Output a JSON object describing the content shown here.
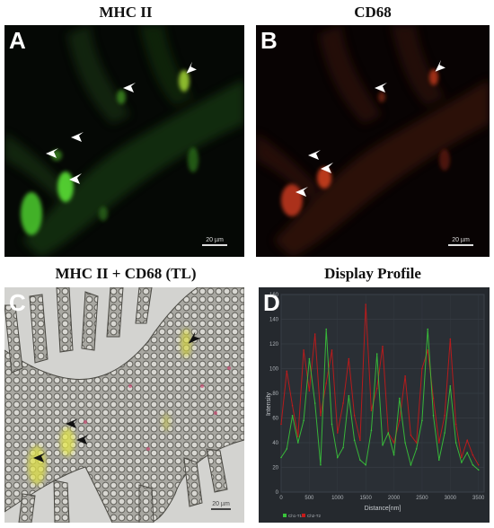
{
  "panels": {
    "a": {
      "title": "MHC II",
      "letter": "A",
      "scale": "20 µm"
    },
    "b": {
      "title": "CD68",
      "letter": "B",
      "scale": "20 µm"
    },
    "c": {
      "title": "MHC II + CD68 (TL)",
      "letter": "C",
      "scale": "20 µm"
    },
    "d": {
      "title": "Display Profile",
      "letter": "D"
    }
  },
  "chart_data": {
    "type": "line",
    "xlabel": "Distance[nm]",
    "ylabel": "Intensity",
    "xlim": [
      0,
      3600
    ],
    "ylim": [
      0,
      160
    ],
    "x_ticks": [
      0,
      500,
      1000,
      1500,
      2000,
      2500,
      3000,
      3500
    ],
    "y_ticks": [
      0,
      20,
      40,
      60,
      80,
      100,
      120,
      140,
      160
    ],
    "legend": [
      "Ch1-T1",
      "Ch2-T2"
    ],
    "legend_position": "bottom-left",
    "colors": {
      "green": "#39c43a",
      "red": "#c61a1a"
    },
    "x": [
      0,
      100,
      200,
      300,
      400,
      500,
      600,
      700,
      800,
      900,
      1000,
      1100,
      1200,
      1300,
      1400,
      1500,
      1600,
      1700,
      1800,
      1900,
      2000,
      2100,
      2200,
      2300,
      2400,
      2500,
      2600,
      2700,
      2800,
      2900,
      3000,
      3100,
      3200,
      3300,
      3400,
      3500
    ],
    "series": [
      {
        "name": "Ch1-T1",
        "values": [
          28,
          35,
          62,
          40,
          58,
          108,
          72,
          22,
          132,
          55,
          28,
          36,
          78,
          42,
          26,
          22,
          50,
          112,
          38,
          48,
          30,
          76,
          40,
          22,
          35,
          58,
          132,
          62,
          26,
          48,
          86,
          40,
          24,
          32,
          22,
          18
        ]
      },
      {
        "name": "Ch2-T2",
        "values": [
          55,
          98,
          70,
          45,
          115,
          82,
          128,
          62,
          88,
          115,
          48,
          72,
          108,
          62,
          42,
          152,
          66,
          84,
          118,
          48,
          40,
          58,
          94,
          46,
          40,
          100,
          115,
          76,
          40,
          62,
          124,
          55,
          28,
          42,
          30,
          22
        ]
      }
    ]
  }
}
